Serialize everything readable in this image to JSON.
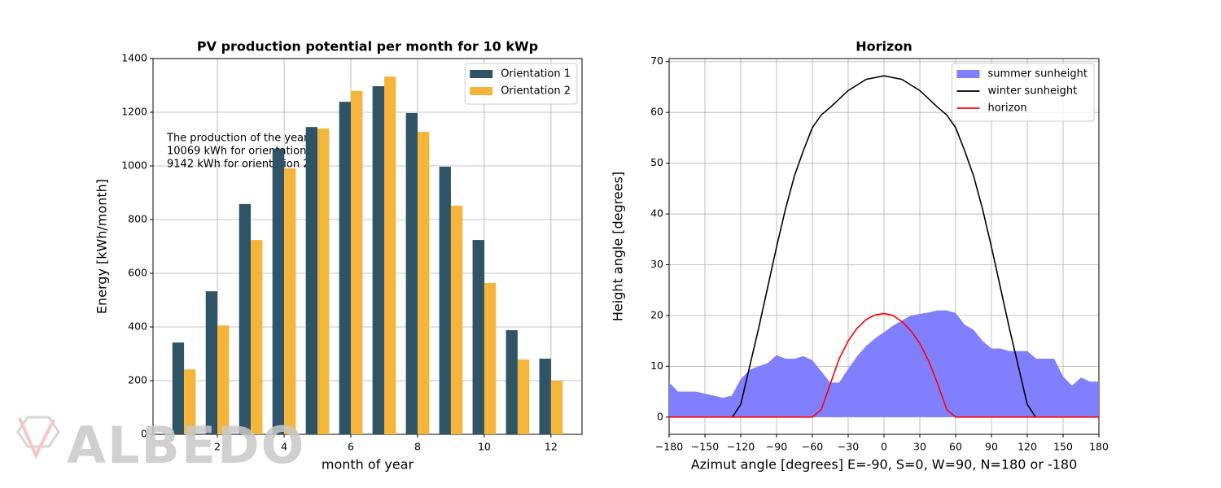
{
  "watermark": "ALBEDO",
  "chart_data": [
    {
      "type": "bar",
      "title": "PV production potential per month for 10 kWp",
      "x_label": "month of year",
      "y_label": "Energy [kWh/month]",
      "x": [
        1,
        2,
        3,
        4,
        5,
        6,
        7,
        8,
        9,
        10,
        11,
        12
      ],
      "series": [
        {
          "name": "Orientation 1",
          "color": "#2f5468",
          "values": [
            342,
            533,
            858,
            1064,
            1145,
            1239,
            1297,
            1197,
            997,
            724,
            388,
            282
          ]
        },
        {
          "name": "Orientation 2",
          "color": "#f5b53a",
          "values": [
            242,
            406,
            724,
            991,
            1139,
            1279,
            1333,
            1127,
            852,
            564,
            279,
            200
          ]
        }
      ],
      "annotation": [
        "The production  of the year is",
        "10069 kWh for orientation 1",
        "9142 kWh for orientation 2"
      ],
      "xlim": [
        0.07,
        12.93
      ],
      "xticks": [
        2,
        4,
        6,
        8,
        10,
        12
      ],
      "ylim": [
        0,
        1400
      ],
      "yticks": [
        0,
        200,
        400,
        600,
        800,
        1000,
        1200,
        1400
      ],
      "grid": true,
      "legend": "upper right"
    },
    {
      "type": "line",
      "title": "Horizon",
      "x_label": "Azimut angle [degrees] E=-90,  S=0, W=90, N=180 or -180",
      "y_label": "Height angle [degrees]",
      "series": [
        {
          "name": "summer sunheight",
          "color": "#8080ff",
          "fill": true,
          "x": [
            -180,
            -172.5,
            -165,
            -157.5,
            -150,
            -142.5,
            -135,
            -127.5,
            -120,
            -112.5,
            -105,
            -97.5,
            -90,
            -82.5,
            -75,
            -67.5,
            -60,
            -52.5,
            -45,
            -37.5,
            -30,
            -22.5,
            -15,
            -7.5,
            0,
            7.5,
            15,
            22.5,
            30,
            37.5,
            45,
            52.5,
            60,
            67.5,
            75,
            82.5,
            90,
            97.5,
            105,
            112.5,
            120,
            127.5,
            135,
            142.5,
            150,
            157.5,
            165,
            172.5,
            180
          ],
          "values": [
            6.8,
            5,
            5,
            5,
            4.6,
            4.2,
            3.8,
            4.2,
            7.5,
            9.3,
            10,
            10.6,
            12.2,
            11.5,
            11.5,
            12,
            11.2,
            9,
            6.8,
            6.8,
            9.5,
            12,
            14,
            15.5,
            16.7,
            18,
            19,
            20,
            20.3,
            20.6,
            21,
            21,
            20.5,
            18.2,
            17.2,
            15,
            13.5,
            13.5,
            13,
            13,
            13,
            11.5,
            11.5,
            11.5,
            8,
            6.2,
            7.8,
            7,
            7
          ]
        },
        {
          "name": "winter sunheight",
          "color": "#000000",
          "x": [
            -127,
            -120,
            -112.5,
            -105,
            -97.5,
            -90,
            -82.5,
            -75,
            -67.5,
            -60,
            -52.5,
            -45,
            -30,
            -15,
            0,
            15,
            30,
            45,
            52.5,
            60,
            67.5,
            75,
            82.5,
            90,
            97.5,
            105,
            112.5,
            120,
            127
          ],
          "values": [
            0,
            2.5,
            10,
            17.5,
            25.5,
            33.5,
            41,
            47.5,
            52.5,
            57,
            59.5,
            61,
            64.3,
            66.5,
            67.2,
            66.5,
            64.3,
            61,
            59.5,
            57,
            52.5,
            47.5,
            41,
            33.5,
            25.5,
            17.5,
            10,
            2.5,
            0
          ]
        },
        {
          "name": "horizon",
          "color": "#ff0000",
          "x": [
            -180,
            -60,
            -52.5,
            -45,
            -37.5,
            -30,
            -22.5,
            -15,
            -7.5,
            0,
            7.5,
            15,
            22.5,
            30,
            37.5,
            45,
            52.5,
            60,
            180
          ],
          "values": [
            0,
            0,
            1.5,
            6.5,
            11.5,
            15,
            17.5,
            19.2,
            20.1,
            20.4,
            20,
            18.8,
            17,
            14.5,
            11,
            6.5,
            1.5,
            0,
            0
          ]
        }
      ],
      "xlim": [
        -180,
        180
      ],
      "xticks": [
        {
          "value": -180,
          "label": "−180"
        },
        {
          "value": -150,
          "label": "−150"
        },
        {
          "value": -120,
          "label": "−120"
        },
        {
          "value": -90,
          "label": "−90"
        },
        {
          "value": -60,
          "label": "−60"
        },
        {
          "value": -30,
          "label": "−30"
        },
        0,
        30,
        60,
        90,
        120,
        150,
        180
      ],
      "ylim": [
        -3.4,
        70.6
      ],
      "yticks": [
        0,
        10,
        20,
        30,
        40,
        50,
        60,
        70
      ],
      "grid": true,
      "legend": "upper right"
    }
  ]
}
